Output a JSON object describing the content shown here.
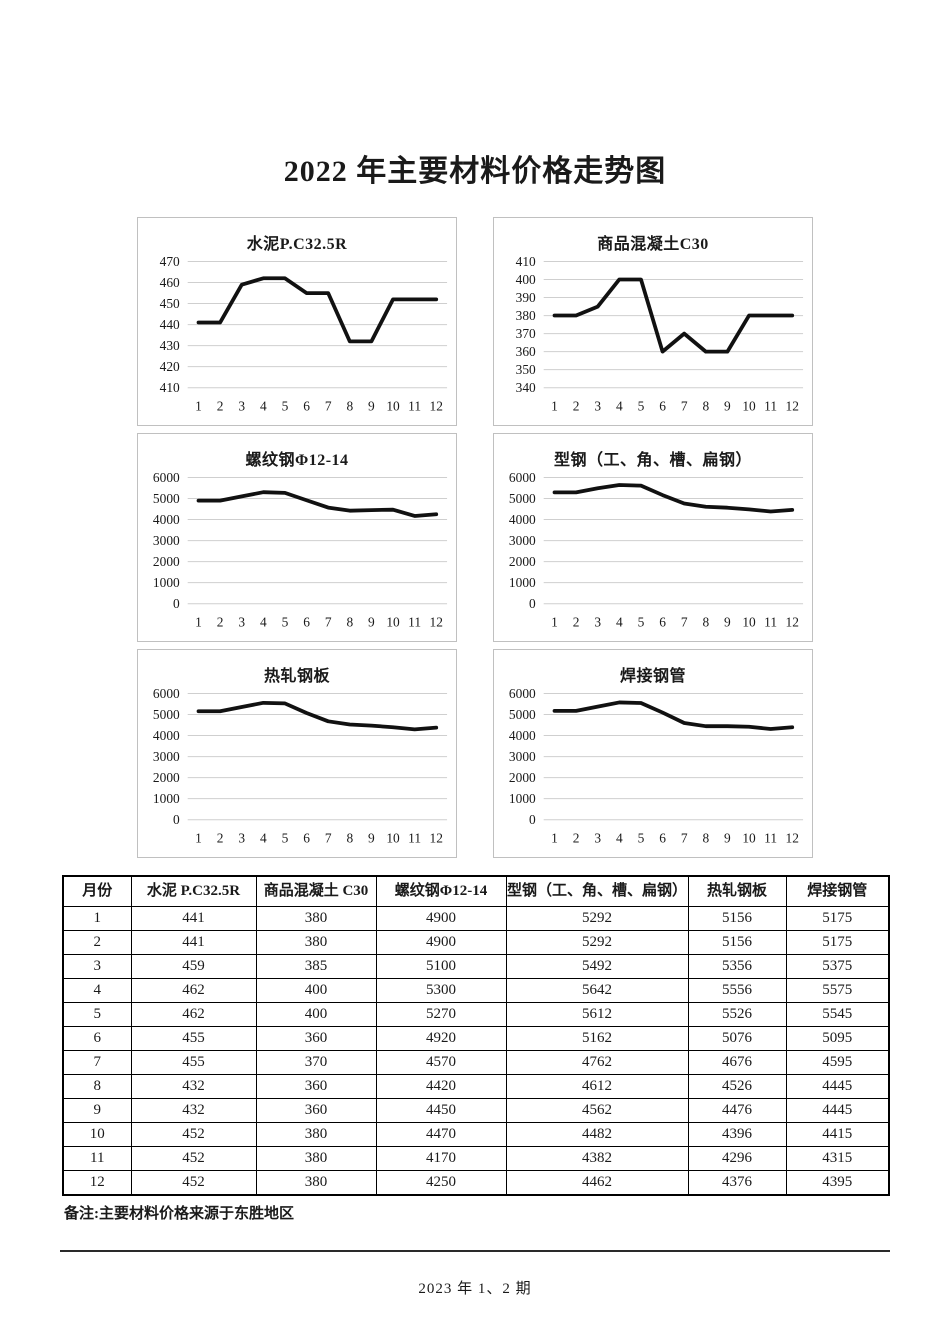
{
  "title": "2022 年主要材料价格走势图",
  "chart_data": [
    {
      "type": "line",
      "title": "水泥P.C32.5R",
      "categories": [
        "1",
        "2",
        "3",
        "4",
        "5",
        "6",
        "7",
        "8",
        "9",
        "10",
        "11",
        "12"
      ],
      "values": [
        441,
        441,
        459,
        462,
        462,
        455,
        455,
        432,
        432,
        452,
        452,
        452
      ],
      "xlabel": "",
      "ylabel": "",
      "ylim": [
        410,
        470
      ],
      "ytick_step": 10,
      "grid": true,
      "legend": "none"
    },
    {
      "type": "line",
      "title": "商品混凝土C30",
      "categories": [
        "1",
        "2",
        "3",
        "4",
        "5",
        "6",
        "7",
        "8",
        "9",
        "10",
        "11",
        "12"
      ],
      "values": [
        380,
        380,
        385,
        400,
        400,
        360,
        370,
        360,
        360,
        380,
        380,
        380
      ],
      "xlabel": "",
      "ylabel": "",
      "ylim": [
        340,
        410
      ],
      "ytick_step": 10,
      "grid": true,
      "legend": "none"
    },
    {
      "type": "line",
      "title": "螺纹钢Φ12-14",
      "categories": [
        "1",
        "2",
        "3",
        "4",
        "5",
        "6",
        "7",
        "8",
        "9",
        "10",
        "11",
        "12"
      ],
      "values": [
        4900,
        4900,
        5100,
        5300,
        5270,
        4920,
        4570,
        4420,
        4450,
        4470,
        4170,
        4250
      ],
      "xlabel": "",
      "ylabel": "",
      "ylim": [
        0,
        6000
      ],
      "ytick_step": 1000,
      "grid": true,
      "legend": "none"
    },
    {
      "type": "line",
      "title": "型钢（工、角、槽、扁钢）",
      "categories": [
        "1",
        "2",
        "3",
        "4",
        "5",
        "6",
        "7",
        "8",
        "9",
        "10",
        "11",
        "12"
      ],
      "values": [
        5292,
        5292,
        5492,
        5642,
        5612,
        5162,
        4762,
        4612,
        4562,
        4482,
        4382,
        4462
      ],
      "xlabel": "",
      "ylabel": "",
      "ylim": [
        0,
        6000
      ],
      "ytick_step": 1000,
      "grid": true,
      "legend": "none"
    },
    {
      "type": "line",
      "title": "热轧钢板",
      "categories": [
        "1",
        "2",
        "3",
        "4",
        "5",
        "6",
        "7",
        "8",
        "9",
        "10",
        "11",
        "12"
      ],
      "values": [
        5156,
        5156,
        5356,
        5556,
        5526,
        5076,
        4676,
        4526,
        4476,
        4396,
        4296,
        4376
      ],
      "xlabel": "",
      "ylabel": "",
      "ylim": [
        0,
        6000
      ],
      "ytick_step": 1000,
      "grid": true,
      "legend": "none"
    },
    {
      "type": "line",
      "title": "焊接钢管",
      "categories": [
        "1",
        "2",
        "3",
        "4",
        "5",
        "6",
        "7",
        "8",
        "9",
        "10",
        "11",
        "12"
      ],
      "values": [
        5175,
        5175,
        5375,
        5575,
        5545,
        5095,
        4595,
        4445,
        4445,
        4415,
        4315,
        4395
      ],
      "xlabel": "",
      "ylabel": "",
      "ylim": [
        0,
        6000
      ],
      "ytick_step": 1000,
      "grid": true,
      "legend": "none"
    }
  ],
  "table": {
    "columns": [
      "月份",
      "水泥 P.C32.5R",
      "商品混凝土 C30",
      "螺纹钢Φ12-14",
      "型钢（工、角、槽、扁钢）",
      "热轧钢板",
      "焊接钢管"
    ],
    "rows": [
      [
        "1",
        "441",
        "380",
        "4900",
        "5292",
        "5156",
        "5175"
      ],
      [
        "2",
        "441",
        "380",
        "4900",
        "5292",
        "5156",
        "5175"
      ],
      [
        "3",
        "459",
        "385",
        "5100",
        "5492",
        "5356",
        "5375"
      ],
      [
        "4",
        "462",
        "400",
        "5300",
        "5642",
        "5556",
        "5575"
      ],
      [
        "5",
        "462",
        "400",
        "5270",
        "5612",
        "5526",
        "5545"
      ],
      [
        "6",
        "455",
        "360",
        "4920",
        "5162",
        "5076",
        "5095"
      ],
      [
        "7",
        "455",
        "370",
        "4570",
        "4762",
        "4676",
        "4595"
      ],
      [
        "8",
        "432",
        "360",
        "4420",
        "4612",
        "4526",
        "4445"
      ],
      [
        "9",
        "432",
        "360",
        "4450",
        "4562",
        "4476",
        "4445"
      ],
      [
        "10",
        "452",
        "380",
        "4470",
        "4482",
        "4396",
        "4415"
      ],
      [
        "11",
        "452",
        "380",
        "4170",
        "4382",
        "4296",
        "4315"
      ],
      [
        "12",
        "452",
        "380",
        "4250",
        "4462",
        "4376",
        "4395"
      ]
    ]
  },
  "note": "备注:主要材料价格来源于东胜地区",
  "footer": "2023 年 1、2 期",
  "colors": {
    "line": "#111111",
    "grid": "#cfcfcf",
    "panel_border": "#c0c0c0",
    "text": "#1a1a1a",
    "table_border": "#000000"
  }
}
